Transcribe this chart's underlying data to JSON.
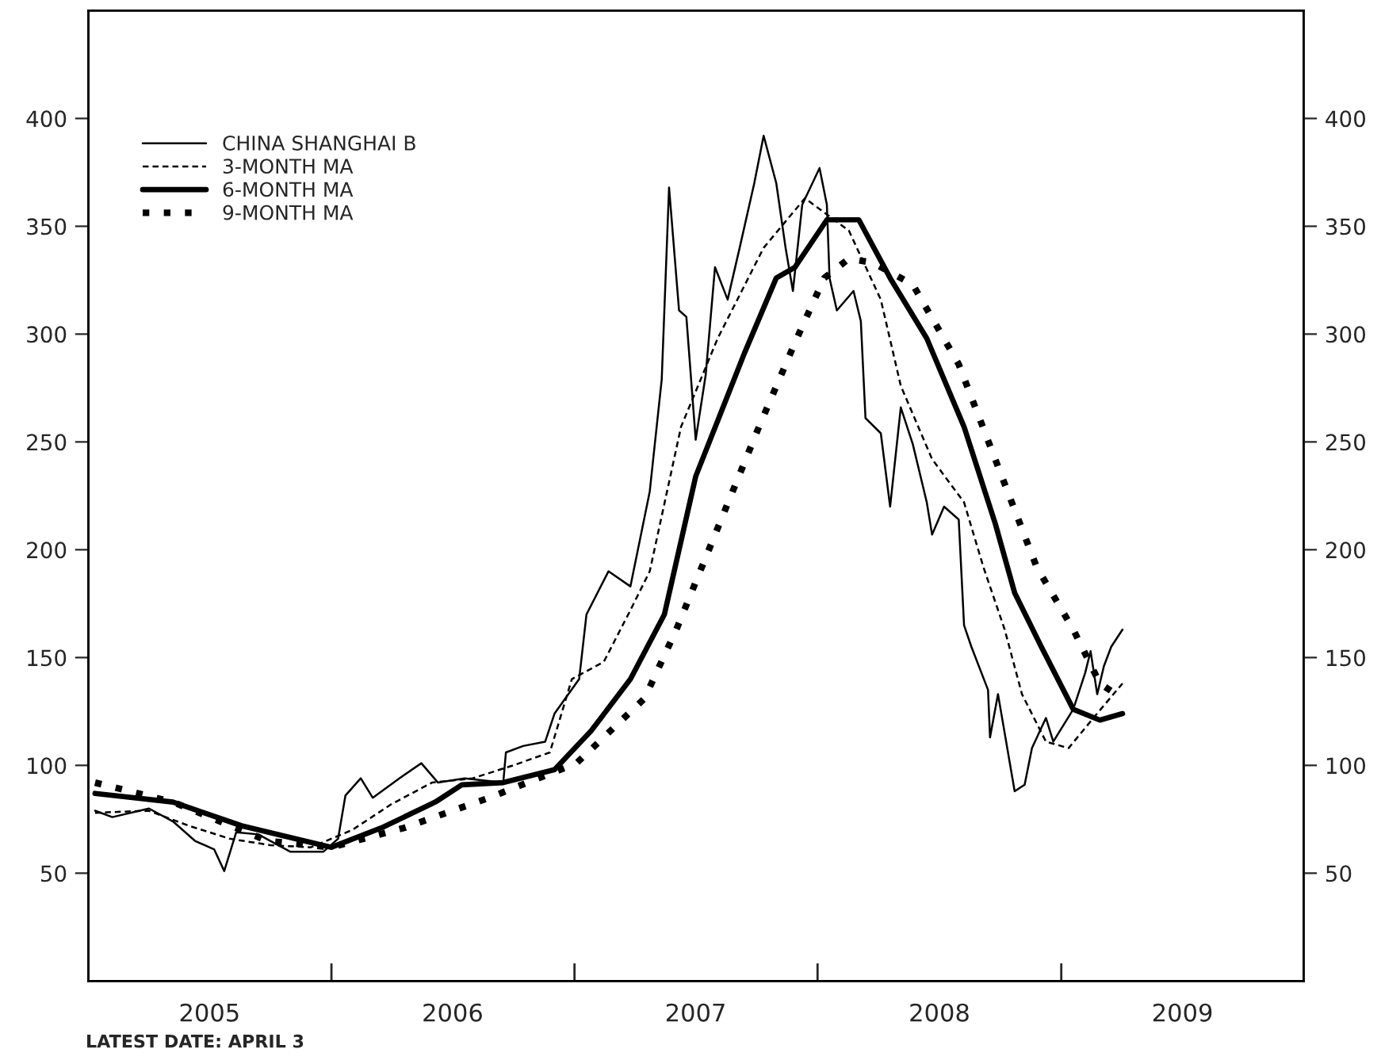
{
  "chart_data": {
    "type": "line",
    "xlim": [
      "2005-01-01",
      "2009-12-31"
    ],
    "xticks": [
      {
        "value": "2006-01-01",
        "label": null
      },
      {
        "value": "2007-01-01",
        "label": null
      },
      {
        "value": "2008-01-01",
        "label": null
      },
      {
        "value": "2009-01-01",
        "label": null
      },
      {
        "value": "2005-07-02",
        "label": "2005"
      },
      {
        "value": "2006-07-02",
        "label": "2006"
      },
      {
        "value": "2007-07-02",
        "label": "2007"
      },
      {
        "value": "2008-07-02",
        "label": "2008"
      },
      {
        "value": "2009-07-02",
        "label": "2009"
      }
    ],
    "ylim": [
      0,
      450
    ],
    "yticks": [
      50,
      100,
      150,
      200,
      250,
      300,
      350,
      400
    ],
    "y2lim": [
      0,
      450
    ],
    "y2ticks": [
      50,
      100,
      150,
      200,
      250,
      300,
      350,
      400
    ],
    "grid": false,
    "legend": "top left",
    "marker": "none",
    "annotations": [
      "LATEST DATE: APRIL 3"
    ],
    "series": [
      {
        "name": "CHINA SHANGHAI B",
        "color": "#000000",
        "line_style": "solid",
        "x": [
          "2005-01-11",
          "2005-02-06",
          "2005-04-02",
          "2005-05-08",
          "2005-06-10",
          "2005-07-09",
          "2005-07-24",
          "2005-08-11",
          "2005-09-13",
          "2005-10-31",
          "2005-12-20",
          "2006-01-11",
          "2006-01-22",
          "2006-02-14",
          "2006-03-04",
          "2006-04-13",
          "2006-05-16",
          "2006-06-10",
          "2006-07-20",
          "2006-09-16",
          "2006-09-20",
          "2006-10-16",
          "2006-11-18",
          "2006-12-02",
          "2007-01-08",
          "2007-01-19",
          "2007-02-21",
          "2007-03-26",
          "2007-04-24",
          "2007-05-12",
          "2007-05-23",
          "2007-06-07",
          "2007-06-18",
          "2007-07-02",
          "2007-07-17",
          "2007-07-31",
          "2007-08-19",
          "2007-09-06",
          "2007-09-28",
          "2007-10-12",
          "2007-10-31",
          "2007-11-14",
          "2007-11-25",
          "2007-12-09",
          "2008-01-04",
          "2008-01-15",
          "2008-01-19",
          "2008-01-30",
          "2008-02-24",
          "2008-03-06",
          "2008-03-13",
          "2008-04-05",
          "2008-04-19",
          "2008-05-05",
          "2008-05-23",
          "2008-06-13",
          "2008-06-21",
          "2008-07-09",
          "2008-07-31",
          "2008-08-08",
          "2008-08-19",
          "2008-09-13",
          "2008-09-16",
          "2008-09-28",
          "2008-10-23",
          "2008-11-07",
          "2008-11-18",
          "2008-12-09",
          "2008-12-20",
          "2009-01-19",
          "2009-02-06",
          "2009-02-14",
          "2009-02-24",
          "2009-03-06",
          "2009-03-17",
          "2009-04-03"
        ],
        "values": [
          79,
          76,
          80,
          74,
          65,
          61,
          51,
          69,
          68,
          60,
          60,
          66,
          86,
          94,
          85,
          94,
          101,
          92,
          94,
          92,
          106,
          109,
          111,
          124,
          140,
          170,
          190,
          183,
          227,
          279,
          368,
          311,
          308,
          251,
          281,
          331,
          316,
          340,
          370,
          392,
          370,
          340,
          320,
          360,
          377,
          360,
          326,
          311,
          320,
          306,
          261,
          254,
          220,
          266,
          249,
          222,
          207,
          220,
          214,
          165,
          155,
          135,
          113,
          133,
          88,
          91,
          108,
          122,
          111,
          126,
          143,
          153,
          133,
          146,
          155,
          163
        ]
      },
      {
        "name": "3-MONTH MA",
        "color": "#000000",
        "line_style": "dashed",
        "x": [
          "2005-01-11",
          "2005-04-01",
          "2005-06-01",
          "2005-08-01",
          "2005-10-01",
          "2005-12-01",
          "2006-02-01",
          "2006-04-01",
          "2006-06-01",
          "2006-08-01",
          "2006-10-01",
          "2006-11-25",
          "2006-12-28",
          "2007-02-14",
          "2007-03-26",
          "2007-04-24",
          "2007-06-10",
          "2007-08-04",
          "2007-10-12",
          "2007-12-13",
          "2008-02-17",
          "2008-04-05",
          "2008-05-05",
          "2008-06-21",
          "2008-08-08",
          "2008-09-06",
          "2008-10-08",
          "2008-11-03",
          "2008-12-09",
          "2009-01-12",
          "2009-02-21",
          "2009-04-03"
        ],
        "values": [
          78,
          79,
          72,
          66,
          63,
          62,
          70,
          82,
          92,
          94,
          100,
          106,
          140,
          148,
          172,
          190,
          257,
          298,
          340,
          363,
          348,
          316,
          276,
          242,
          222,
          192,
          163,
          133,
          111,
          108,
          123,
          138
        ]
      },
      {
        "name": "6-MONTH MA",
        "color": "#000000",
        "line_style": "solid",
        "x": [
          "2005-01-11",
          "2005-05-08",
          "2005-08-19",
          "2005-11-21",
          "2006-01-01",
          "2006-03-17",
          "2006-06-06",
          "2006-07-16",
          "2006-09-16",
          "2006-12-02",
          "2007-01-26",
          "2007-03-26",
          "2007-05-16",
          "2007-07-02",
          "2007-09-13",
          "2007-10-31",
          "2007-11-28",
          "2008-01-15",
          "2008-03-03",
          "2008-04-19",
          "2008-06-13",
          "2008-08-08",
          "2008-09-24",
          "2008-10-23",
          "2008-12-02",
          "2009-01-19",
          "2009-02-28",
          "2009-04-03"
        ],
        "values": [
          87,
          83,
          72,
          65,
          62,
          71,
          83,
          91,
          92,
          98,
          116,
          140,
          170,
          234,
          291,
          326,
          331,
          353,
          353,
          326,
          298,
          257,
          212,
          180,
          155,
          126,
          121,
          124
        ]
      },
      {
        "name": "9-MONTH MA",
        "color": "#000000",
        "line_style": "dotted",
        "x": [
          "2005-01-11",
          "2005-05-08",
          "2005-09-27",
          "2006-01-01",
          "2006-04-20",
          "2006-08-26",
          "2007-01-04",
          "2007-04-16",
          "2007-06-03",
          "2007-10-05",
          "2007-11-28",
          "2008-01-11",
          "2008-02-17",
          "2008-03-25",
          "2008-05-23",
          "2008-07-31",
          "2008-11-25",
          "2009-01-19",
          "2009-02-28",
          "2009-04-03"
        ],
        "values": [
          92,
          83,
          65,
          62,
          71,
          85,
          101,
          131,
          163,
          257,
          296,
          326,
          335,
          333,
          323,
          286,
          192,
          163,
          138,
          131
        ]
      }
    ]
  }
}
